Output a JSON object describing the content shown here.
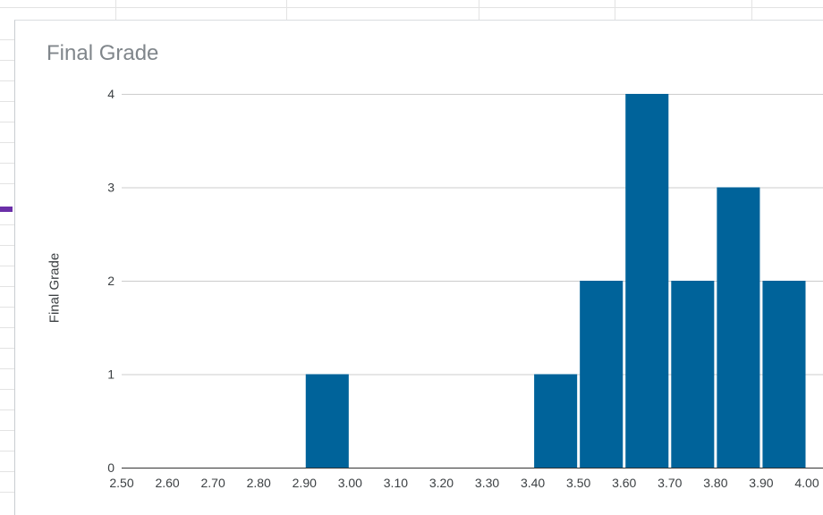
{
  "chart_data": {
    "type": "bar",
    "title": "Final Grade",
    "ylabel": "Final Grade",
    "xlabel": "",
    "x_ticks": [
      "2.50",
      "2.60",
      "2.70",
      "2.80",
      "2.90",
      "3.00",
      "3.10",
      "3.20",
      "3.30",
      "3.40",
      "3.50",
      "3.60",
      "3.70",
      "3.80",
      "3.90",
      "4.00"
    ],
    "y_ticks": [
      "0",
      "1",
      "2",
      "3",
      "4"
    ],
    "xlim": [
      2.5,
      4.0
    ],
    "ylim": [
      0,
      4
    ],
    "grid": true,
    "color": "#00639a",
    "bins": [
      {
        "start": 2.9,
        "end": 3.0,
        "value": 1
      },
      {
        "start": 3.4,
        "end": 3.5,
        "value": 1
      },
      {
        "start": 3.5,
        "end": 3.6,
        "value": 2
      },
      {
        "start": 3.6,
        "end": 3.7,
        "value": 4
      },
      {
        "start": 3.7,
        "end": 3.8,
        "value": 2
      },
      {
        "start": 3.8,
        "end": 3.9,
        "value": 3
      },
      {
        "start": 3.9,
        "end": 4.0,
        "value": 2
      }
    ]
  }
}
